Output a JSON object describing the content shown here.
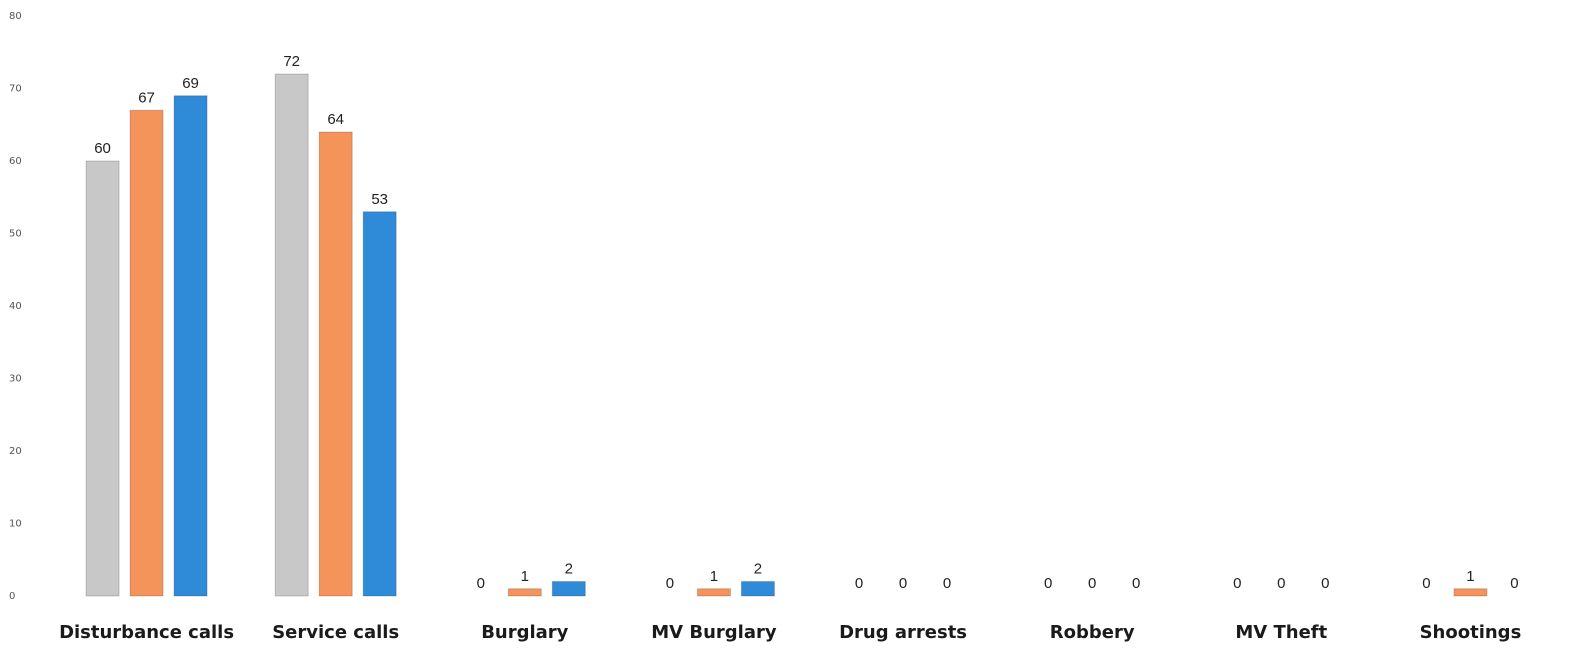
{
  "chart_data": {
    "type": "bar",
    "title": "",
    "xlabel": "",
    "ylabel": "",
    "ylim": [
      0,
      80
    ],
    "yticks": [
      0,
      10,
      20,
      30,
      40,
      50,
      60,
      70,
      80
    ],
    "grid": false,
    "legend": "none",
    "categories": [
      "Disturbance calls",
      "Service calls",
      "Burglary",
      "MV Burglary",
      "Drug arrests",
      "Robbery",
      "MV Theft",
      "Shootings"
    ],
    "series": [
      {
        "color": "#c8c8c8",
        "values": [
          60,
          72,
          0,
          0,
          0,
          0,
          0,
          0
        ]
      },
      {
        "color": "#f4935a",
        "values": [
          67,
          64,
          1,
          1,
          0,
          0,
          0,
          1
        ]
      },
      {
        "color": "#2f8ad8",
        "values": [
          69,
          53,
          2,
          2,
          0,
          0,
          0,
          0
        ]
      }
    ]
  }
}
